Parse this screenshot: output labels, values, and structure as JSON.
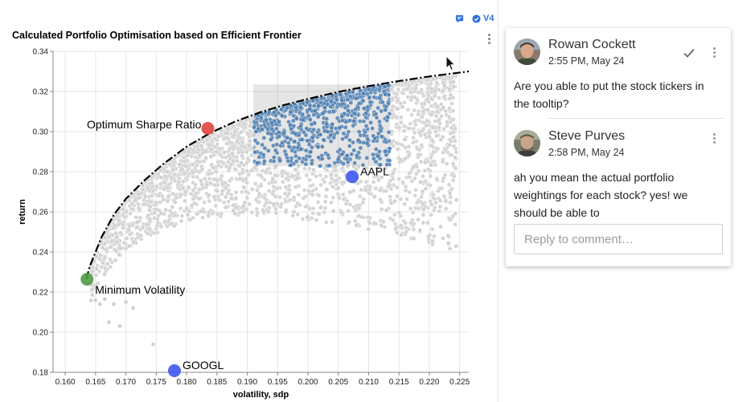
{
  "header": {
    "version_label": "V4",
    "comment_icon": "comment-icon",
    "version_icon": "check-circle-icon",
    "accent_color": "#2f6fd6"
  },
  "chart_data": {
    "type": "scatter",
    "title": "Calculated Portfolio Optimisation based on Efficient Frontier",
    "xlabel": "volatility, sdp",
    "ylabel": "return",
    "xlim": [
      0.158,
      0.2265
    ],
    "ylim": [
      0.18,
      0.34
    ],
    "x_ticks": [
      "0.160",
      "0.165",
      "0.170",
      "0.175",
      "0.180",
      "0.185",
      "0.190",
      "0.195",
      "0.200",
      "0.205",
      "0.210",
      "0.215",
      "0.220",
      "0.225"
    ],
    "y_ticks": [
      "0.18",
      "0.20",
      "0.22",
      "0.24",
      "0.26",
      "0.28",
      "0.30",
      "0.32",
      "0.34"
    ],
    "grid": true,
    "selection_box": {
      "x": [
        0.191,
        0.2135
      ],
      "y": [
        0.2828,
        0.3235
      ]
    },
    "selection_color": "#3b7cc0",
    "portfolio_color": "#d0d0d0",
    "frontier": {
      "x": [
        0.1635,
        0.164,
        0.166,
        0.168,
        0.17,
        0.173,
        0.176,
        0.18,
        0.184,
        0.188,
        0.192,
        0.196,
        0.2,
        0.205,
        0.21,
        0.215,
        0.22,
        0.2265
      ],
      "y": [
        0.2265,
        0.2325,
        0.2475,
        0.2585,
        0.2665,
        0.2755,
        0.2835,
        0.2925,
        0.2995,
        0.305,
        0.3095,
        0.3132,
        0.3163,
        0.3198,
        0.3227,
        0.3252,
        0.3275,
        0.33
      ]
    },
    "highlight_points": [
      {
        "label": "Optimum Sharpe Ratio",
        "x": 0.1835,
        "y": 0.3016,
        "color": "#e0453e",
        "label_side": "left"
      },
      {
        "label": "Minimum Volatility",
        "x": 0.1636,
        "y": 0.2264,
        "color": "#4e9a45",
        "label_side": "right"
      },
      {
        "label": "AAPL",
        "x": 0.2073,
        "y": 0.2775,
        "color": "#3f55f0",
        "label_side": "right"
      },
      {
        "label": "GOOGL",
        "x": 0.178,
        "y": 0.1808,
        "color": "#3f55f0",
        "label_side": "right"
      }
    ],
    "outlier_points": {
      "x": [
        0.1645,
        0.165,
        0.1657,
        0.1665,
        0.1672,
        0.168,
        0.169,
        0.17,
        0.1712,
        0.1745,
        0.2195,
        0.219,
        0.2205,
        0.2223,
        0.2225,
        0.22
      ],
      "y": [
        0.2185,
        0.216,
        0.214,
        0.2165,
        0.205,
        0.214,
        0.203,
        0.215,
        0.212,
        0.194,
        0.303,
        0.31,
        0.302,
        0.312,
        0.323,
        0.2975
      ]
    }
  },
  "comments": [
    {
      "author": "Rowan Cockett",
      "time": "2:55 PM, May 24",
      "body": "Are you able to put the stock tickers in the tooltip?",
      "resolve_icon": "check-icon"
    },
    {
      "author": "Steve Purves",
      "time": "2:58 PM, May 24",
      "body": "ah you mean the actual portfolio weightings for each stock? yes! we should be able to"
    }
  ],
  "reply": {
    "placeholder": "Reply to comment…"
  }
}
